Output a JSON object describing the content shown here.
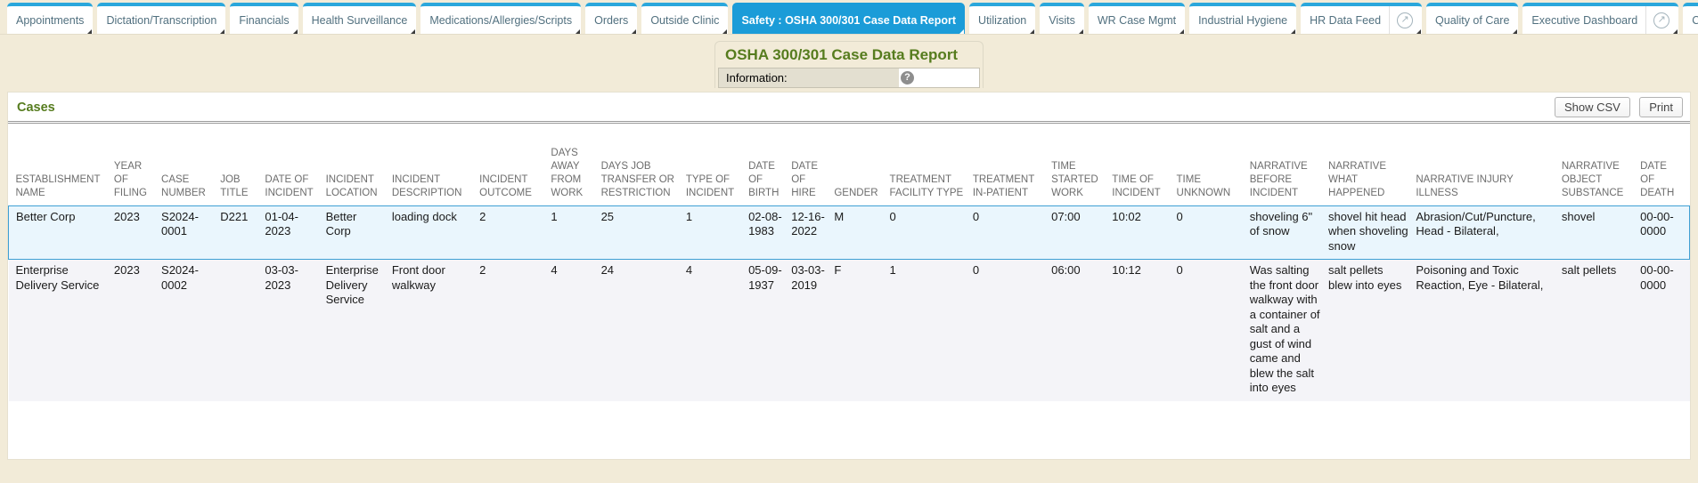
{
  "tabs": [
    {
      "label": "Appointments",
      "active": false
    },
    {
      "label": "Dictation/Transcription",
      "active": false
    },
    {
      "label": "Financials",
      "active": false
    },
    {
      "label": "Health Surveillance",
      "active": false
    },
    {
      "label": "Medications/Allergies/Scripts",
      "active": false
    },
    {
      "label": "Orders",
      "active": false
    },
    {
      "label": "Outside Clinic",
      "active": false
    },
    {
      "label": "Safety : OSHA 300/301 Case Data Report",
      "active": true
    },
    {
      "label": "Utilization",
      "active": false
    },
    {
      "label": "Visits",
      "active": false
    },
    {
      "label": "WR Case Mgmt",
      "active": false
    },
    {
      "label": "Industrial Hygiene",
      "active": false
    },
    {
      "label": "HR Data Feed",
      "active": false,
      "icon": "external-link-icon",
      "icon_glyph": "↗"
    },
    {
      "label": "Quality of Care",
      "active": false
    },
    {
      "label": "Executive Dashboard",
      "active": false,
      "icon": "external-link-icon",
      "icon_glyph": "↗"
    },
    {
      "label": "C",
      "active": false
    }
  ],
  "header": {
    "title": "OSHA 300/301 Case Data Report",
    "info_label": "Information:",
    "help_glyph": "?"
  },
  "cases": {
    "heading": "Cases",
    "show_csv_label": "Show CSV",
    "print_label": "Print"
  },
  "table": {
    "selected_row_index": 0,
    "columns": [
      "ESTABLISHMENT NAME",
      "YEAR OF FILING",
      "CASE NUMBER",
      "JOB TITLE",
      "DATE OF INCIDENT",
      "INCIDENT LOCATION",
      "INCIDENT DESCRIPTION",
      "INCIDENT OUTCOME",
      "DAYS AWAY FROM WORK",
      "DAYS JOB TRANSFER OR RESTRICTION",
      "TYPE OF INCIDENT",
      "DATE OF BIRTH",
      "DATE OF HIRE",
      "GENDER",
      "TREATMENT FACILITY TYPE",
      "TREATMENT IN-PATIENT",
      "TIME STARTED WORK",
      "TIME OF INCIDENT",
      "TIME UNKNOWN",
      "NARRATIVE BEFORE INCIDENT",
      "NARRATIVE WHAT HAPPENED",
      "NARRATIVE INJURY ILLNESS",
      "NARRATIVE OBJECT SUBSTANCE",
      "DATE OF DEATH"
    ],
    "rows": [
      [
        "Better Corp",
        "2023",
        "S2024-0001",
        "D221",
        "01-04-2023",
        "Better Corp",
        "loading dock",
        "2",
        "1",
        "25",
        "1",
        "02-08-1983",
        "12-16-2022",
        "M",
        "0",
        "0",
        "07:00",
        "10:02",
        "0",
        "shoveling 6\" of snow",
        "shovel hit head when shoveling snow",
        "Abrasion/Cut/Puncture, Head - Bilateral,",
        "shovel",
        "00-00-0000"
      ],
      [
        "Enterprise Delivery Service",
        "2023",
        "S2024-0002",
        "",
        "03-03-2023",
        "Enterprise Delivery Service",
        "Front door walkway",
        "2",
        "4",
        "24",
        "4",
        "05-09-1937",
        "03-03-2019",
        "F",
        "1",
        "0",
        "06:00",
        "10:12",
        "0",
        "Was salting the front door walkway with a container of salt and a gust of wind came and blew the salt into eyes",
        "salt pellets blew into eyes",
        "Poisoning and Toxic Reaction, Eye - Bilateral,",
        "salt pellets",
        "00-00-0000"
      ]
    ]
  },
  "colors": {
    "active_tab_blue": "#1b9cd8",
    "tab_strip_blue": "#2aa7dc",
    "title_green": "#567c1e",
    "selected_row_border": "#3fa0d4",
    "selected_row_bg": "#eaf6fd",
    "page_background": "#f2ebd8"
  }
}
